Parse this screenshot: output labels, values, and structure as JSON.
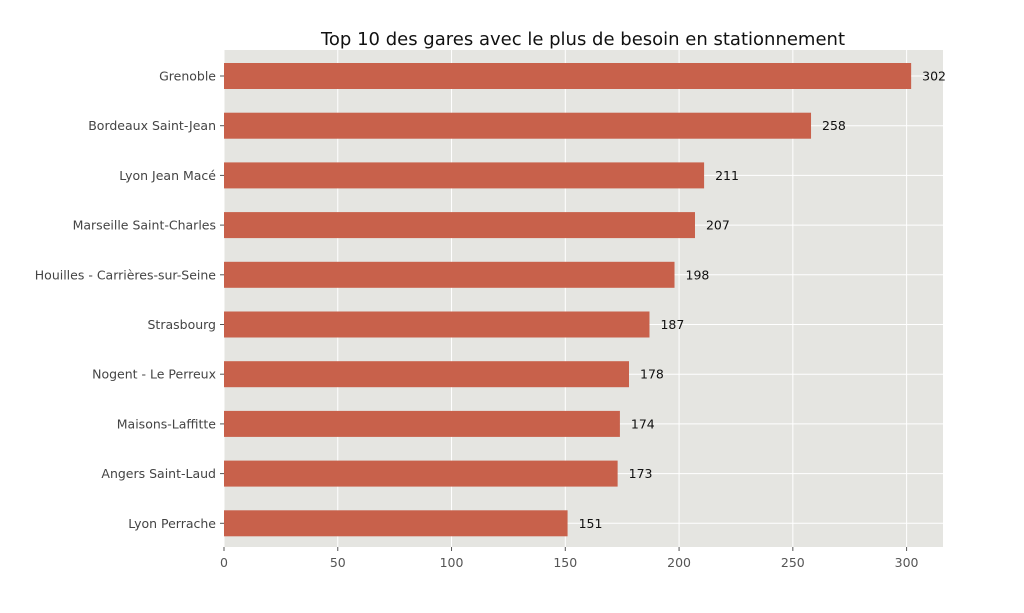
{
  "chart_data": {
    "type": "bar",
    "orientation": "horizontal",
    "title": "Top 10 des gares avec le plus de besoin en stationnement",
    "xlabel": "",
    "ylabel": "",
    "categories": [
      "Grenoble",
      "Bordeaux Saint-Jean",
      "Lyon Jean Macé",
      "Marseille Saint-Charles",
      "Houilles - Carrières-sur-Seine",
      "Strasbourg",
      "Nogent - Le Perreux",
      "Maisons-Laffitte",
      "Angers Saint-Laud",
      "Lyon Perrache"
    ],
    "values": [
      302,
      258,
      211,
      207,
      198,
      187,
      178,
      174,
      173,
      151
    ],
    "value_labels": [
      "302",
      "258",
      "211",
      "207",
      "198",
      "187",
      "178",
      "174",
      "173",
      "151"
    ],
    "xticks": [
      0,
      50,
      100,
      150,
      200,
      250,
      300
    ],
    "xtick_labels": [
      "0",
      "50",
      "100",
      "150",
      "200",
      "250",
      "300"
    ],
    "xlim": [
      0,
      316
    ],
    "grid": true,
    "colors": {
      "bar": "#c8614b",
      "plot_background": "#e5e5e1",
      "grid": "#ffffff"
    }
  }
}
